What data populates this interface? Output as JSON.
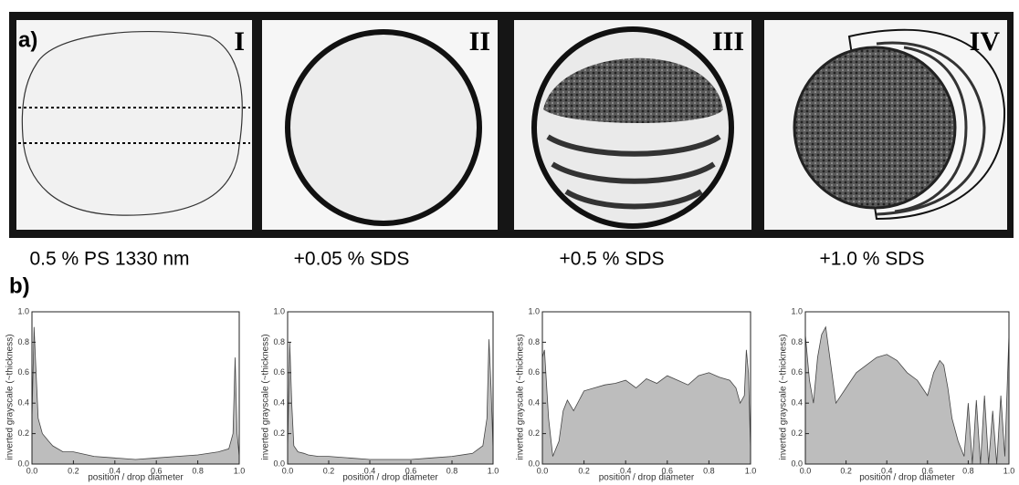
{
  "panel_a": {
    "label": "a)",
    "images": [
      {
        "numeral": "I",
        "caption": "0.5 % PS 1330 nm"
      },
      {
        "numeral": "II",
        "caption": "+0.05 % SDS"
      },
      {
        "numeral": "III",
        "caption": "+0.5 % SDS"
      },
      {
        "numeral": "IV",
        "caption": "+1.0 % SDS"
      }
    ]
  },
  "panel_b": {
    "label": "b)"
  },
  "chart_data": [
    {
      "type": "area",
      "xlabel": "position / drop diameter",
      "ylabel": "inverted grayscale (~thickness)",
      "color": "#bdbdbd",
      "line_color": "#444444",
      "x": [
        0,
        0.01,
        0.02,
        0.03,
        0.05,
        0.08,
        0.1,
        0.15,
        0.2,
        0.3,
        0.4,
        0.5,
        0.6,
        0.7,
        0.8,
        0.9,
        0.95,
        0.97,
        0.98,
        0.99,
        1.0
      ],
      "values": [
        0.3,
        0.9,
        0.6,
        0.3,
        0.2,
        0.15,
        0.12,
        0.08,
        0.08,
        0.05,
        0.04,
        0.03,
        0.04,
        0.05,
        0.06,
        0.08,
        0.1,
        0.2,
        0.7,
        0.2,
        0.05
      ],
      "xlim": [
        0,
        1
      ],
      "ylim": [
        0,
        1
      ],
      "xticks": [
        {
          "value": 0,
          "label": "0.0"
        },
        0.2,
        0.4,
        0.6,
        0.8,
        {
          "value": 1,
          "label": "1.0"
        }
      ],
      "yticks": [
        {
          "value": 0,
          "label": "0.0"
        },
        0.2,
        0.4,
        0.6,
        0.8,
        {
          "value": 1,
          "label": "1.0"
        }
      ]
    },
    {
      "type": "area",
      "xlabel": "position / drop diameter",
      "ylabel": "inverted grayscale (~thickness)",
      "color": "#bdbdbd",
      "line_color": "#444444",
      "x": [
        0,
        0.01,
        0.02,
        0.03,
        0.05,
        0.08,
        0.1,
        0.15,
        0.2,
        0.3,
        0.4,
        0.5,
        0.6,
        0.7,
        0.8,
        0.9,
        0.95,
        0.97,
        0.98,
        0.99,
        1.0
      ],
      "values": [
        0.1,
        0.8,
        0.4,
        0.12,
        0.08,
        0.07,
        0.06,
        0.05,
        0.05,
        0.04,
        0.03,
        0.03,
        0.03,
        0.04,
        0.05,
        0.07,
        0.12,
        0.3,
        0.82,
        0.5,
        0.1
      ],
      "xlim": [
        0,
        1
      ],
      "ylim": [
        0,
        1
      ],
      "xticks": [
        {
          "value": 0,
          "label": "0.0"
        },
        0.2,
        0.4,
        0.6,
        0.8,
        {
          "value": 1,
          "label": "1.0"
        }
      ],
      "yticks": [
        {
          "value": 0,
          "label": "0.0"
        },
        0.2,
        0.4,
        0.6,
        0.8,
        {
          "value": 1,
          "label": "1.0"
        }
      ]
    },
    {
      "type": "area",
      "xlabel": "position / drop diameter",
      "ylabel": "inverted grayscale (~thickness)",
      "color": "#bdbdbd",
      "line_color": "#444444",
      "x": [
        0,
        0.01,
        0.03,
        0.05,
        0.08,
        0.1,
        0.12,
        0.15,
        0.2,
        0.25,
        0.3,
        0.35,
        0.4,
        0.45,
        0.5,
        0.55,
        0.6,
        0.65,
        0.7,
        0.75,
        0.8,
        0.85,
        0.9,
        0.93,
        0.95,
        0.97,
        0.98,
        0.99,
        1.0
      ],
      "values": [
        0.7,
        0.75,
        0.3,
        0.05,
        0.15,
        0.35,
        0.42,
        0.35,
        0.48,
        0.5,
        0.52,
        0.53,
        0.55,
        0.5,
        0.56,
        0.53,
        0.58,
        0.55,
        0.52,
        0.58,
        0.6,
        0.57,
        0.55,
        0.5,
        0.4,
        0.45,
        0.75,
        0.6,
        0.1
      ],
      "xlim": [
        0,
        1
      ],
      "ylim": [
        0,
        1
      ],
      "xticks": [
        {
          "value": 0,
          "label": "0.0"
        },
        0.2,
        0.4,
        0.6,
        0.8,
        {
          "value": 1,
          "label": "1.0"
        }
      ],
      "yticks": [
        {
          "value": 0,
          "label": "0.0"
        },
        0.2,
        0.4,
        0.6,
        0.8,
        {
          "value": 1,
          "label": "1.0"
        }
      ]
    },
    {
      "type": "area",
      "xlabel": "position / drop diameter",
      "ylabel": "inverted grayscale (~thickness)",
      "color": "#bdbdbd",
      "line_color": "#444444",
      "x": [
        0,
        0.02,
        0.04,
        0.06,
        0.08,
        0.1,
        0.12,
        0.15,
        0.2,
        0.25,
        0.3,
        0.35,
        0.4,
        0.45,
        0.5,
        0.55,
        0.6,
        0.63,
        0.66,
        0.68,
        0.7,
        0.72,
        0.75,
        0.78,
        0.8,
        0.82,
        0.84,
        0.86,
        0.88,
        0.9,
        0.92,
        0.94,
        0.96,
        0.98,
        1.0
      ],
      "values": [
        0.85,
        0.55,
        0.4,
        0.7,
        0.85,
        0.9,
        0.7,
        0.4,
        0.5,
        0.6,
        0.65,
        0.7,
        0.72,
        0.68,
        0.6,
        0.55,
        0.45,
        0.6,
        0.68,
        0.65,
        0.5,
        0.3,
        0.15,
        0.05,
        0.4,
        0.0,
        0.42,
        0.0,
        0.45,
        0.0,
        0.35,
        0.0,
        0.45,
        0.05,
        0.85
      ],
      "xlim": [
        0,
        1
      ],
      "ylim": [
        0,
        1
      ],
      "xticks": [
        {
          "value": 0,
          "label": "0.0"
        },
        0.2,
        0.4,
        0.6,
        0.8,
        {
          "value": 1,
          "label": "1.0"
        }
      ],
      "yticks": [
        {
          "value": 0,
          "label": "0.0"
        },
        0.2,
        0.4,
        0.6,
        0.8,
        {
          "value": 1,
          "label": "1.0"
        }
      ]
    }
  ]
}
